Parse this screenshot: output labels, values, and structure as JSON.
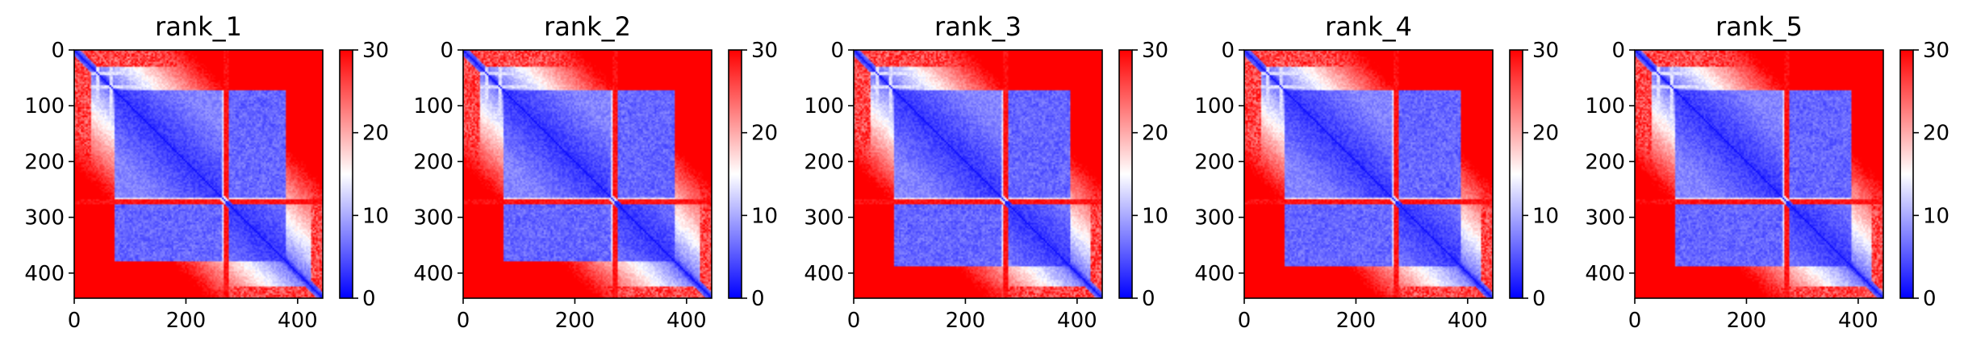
{
  "chart_data": [
    {
      "type": "heatmap",
      "title": "rank_1",
      "x_ticks": [
        0,
        200,
        400
      ],
      "y_ticks": [
        0,
        100,
        200,
        300,
        400
      ],
      "xlim": [
        0,
        445
      ],
      "ylim": [
        445,
        0
      ],
      "colorbar": {
        "ticks": [
          0,
          10,
          20,
          30
        ],
        "range": [
          0,
          30
        ],
        "colors": [
          "#0000ff",
          "#ffffff",
          "#ff0000"
        ]
      },
      "domains": [
        [
          70,
          265
        ],
        [
          270,
          375
        ]
      ],
      "bands": [
        {
          "index": 270,
          "width": 8,
          "value": 29
        }
      ],
      "stripes": [
        40,
        65,
        265
      ]
    },
    {
      "type": "heatmap",
      "title": "rank_2",
      "x_ticks": [
        0,
        200,
        400
      ],
      "y_ticks": [
        0,
        100,
        200,
        300,
        400
      ],
      "xlim": [
        0,
        445
      ],
      "ylim": [
        445,
        0
      ],
      "colorbar": {
        "ticks": [
          0,
          10,
          20,
          30
        ],
        "range": [
          0,
          30
        ],
        "colors": [
          "#0000ff",
          "#ffffff",
          "#ff0000"
        ]
      },
      "domains": [
        [
          70,
          265
        ],
        [
          270,
          375
        ]
      ],
      "bands": [
        {
          "index": 270,
          "width": 8,
          "value": 29
        }
      ],
      "stripes": [
        40,
        65,
        265
      ]
    },
    {
      "type": "heatmap",
      "title": "rank_3",
      "x_ticks": [
        0,
        200,
        400
      ],
      "y_ticks": [
        0,
        100,
        200,
        300,
        400
      ],
      "xlim": [
        0,
        445
      ],
      "ylim": [
        445,
        0
      ],
      "colorbar": {
        "ticks": [
          0,
          10,
          20,
          30
        ],
        "range": [
          0,
          30
        ],
        "colors": [
          "#0000ff",
          "#ffffff",
          "#ff0000"
        ]
      },
      "domains": [
        [
          70,
          265
        ],
        [
          270,
          385
        ]
      ],
      "bands": [
        {
          "index": 270,
          "width": 8,
          "value": 29
        }
      ],
      "stripes": [
        40,
        65,
        265
      ]
    },
    {
      "type": "heatmap",
      "title": "rank_4",
      "x_ticks": [
        0,
        200,
        400
      ],
      "y_ticks": [
        0,
        100,
        200,
        300,
        400
      ],
      "xlim": [
        0,
        445
      ],
      "ylim": [
        445,
        0
      ],
      "colorbar": {
        "ticks": [
          0,
          10,
          20,
          30
        ],
        "range": [
          0,
          30
        ],
        "colors": [
          "#0000ff",
          "#ffffff",
          "#ff0000"
        ]
      },
      "domains": [
        [
          70,
          265
        ],
        [
          270,
          385
        ]
      ],
      "bands": [
        {
          "index": 270,
          "width": 8,
          "value": 29
        }
      ],
      "stripes": [
        40,
        65,
        265
      ]
    },
    {
      "type": "heatmap",
      "title": "rank_5",
      "x_ticks": [
        0,
        200,
        400
      ],
      "y_ticks": [
        0,
        100,
        200,
        300,
        400
      ],
      "xlim": [
        0,
        445
      ],
      "ylim": [
        445,
        0
      ],
      "colorbar": {
        "ticks": [
          0,
          10,
          20,
          30
        ],
        "range": [
          0,
          30
        ],
        "colors": [
          "#0000ff",
          "#ffffff",
          "#ff0000"
        ]
      },
      "domains": [
        [
          70,
          265
        ],
        [
          270,
          385
        ]
      ],
      "bands": [
        {
          "index": 270,
          "width": 8,
          "value": 29
        }
      ],
      "stripes": [
        40,
        65,
        265
      ]
    }
  ]
}
